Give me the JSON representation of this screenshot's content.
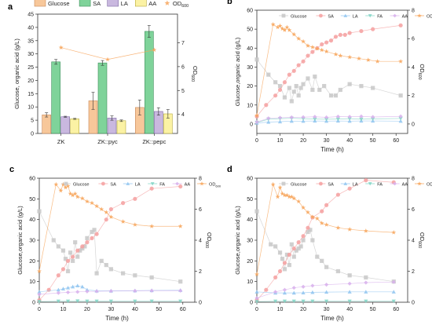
{
  "chart_data": [
    {
      "panel_label": "a",
      "type": "bar",
      "categories": [
        "ZK",
        "ZK::pyc",
        "ZK::pepc"
      ],
      "xlabel": "",
      "ylabel": "Glucose, organic acid (g/L)",
      "y2label": "OD600",
      "ylim": [
        0,
        45
      ],
      "yticks": [
        0,
        5,
        10,
        15,
        20,
        25,
        30,
        35,
        40,
        45
      ],
      "y2lim": [
        3.2,
        8.2
      ],
      "y2ticks": [
        4,
        5,
        6,
        7
      ],
      "legend_position": "top",
      "series": [
        {
          "name": "Glucose",
          "values": [
            7.0,
            12.3,
            9.8
          ],
          "err": [
            0.8,
            3.2,
            2.8
          ],
          "color": "#f7c79a",
          "edge": "#c8895a"
        },
        {
          "name": "SA",
          "values": [
            27.0,
            26.6,
            38.5
          ],
          "err": [
            0.9,
            0.9,
            2.2
          ],
          "color": "#7fd39a",
          "edge": "#3e8f5a"
        },
        {
          "name": "LA",
          "values": [
            6.3,
            5.8,
            8.3
          ],
          "err": [
            0.2,
            0.8,
            1.4
          ],
          "color": "#c9b8df",
          "edge": "#7e6aa3"
        },
        {
          "name": "AA",
          "values": [
            5.5,
            4.8,
            7.4
          ],
          "err": [
            0.2,
            0.3,
            1.6
          ],
          "color": "#fbf2a4",
          "edge": "#b7ab3b"
        },
        {
          "name": "OD600",
          "type": "line",
          "axis": "right",
          "values": [
            6.8,
            6.3,
            6.7
          ],
          "color": "#f7a45a"
        }
      ]
    },
    {
      "panel_label": "b",
      "type": "scatter",
      "xlabel": "Time (h)",
      "ylabel": "Glucose,organic acid (g/L)",
      "y2label": "OD600",
      "xlim": [
        0,
        65
      ],
      "xticks": [
        0,
        10,
        20,
        30,
        40,
        50,
        60
      ],
      "ylim": [
        -5,
        60
      ],
      "yticks": [
        0,
        10,
        20,
        30,
        40,
        50,
        60
      ],
      "y2lim": [
        -0.667,
        8
      ],
      "y2ticks": [
        0,
        2,
        4,
        6,
        8
      ],
      "series": [
        {
          "name": "Glucose",
          "marker": "square",
          "color": "#c8c8c8",
          "axis": "left",
          "x": [
            0,
            5,
            8,
            10,
            12,
            14,
            15,
            16,
            17,
            18,
            19,
            20,
            22,
            24,
            25,
            27,
            29,
            32,
            34,
            36,
            40,
            45,
            50,
            62
          ],
          "y": [
            34,
            26,
            22,
            20,
            14,
            19,
            12,
            17,
            20,
            15,
            19,
            21,
            24,
            18,
            25,
            18,
            20,
            15,
            15,
            18,
            21,
            20,
            19,
            15
          ]
        },
        {
          "name": "SA",
          "marker": "circle",
          "color": "#f4a0a0",
          "axis": "left",
          "x": [
            0,
            4,
            8,
            10,
            12,
            14,
            16,
            18,
            20,
            22,
            24,
            26,
            28,
            30,
            32,
            34,
            36,
            38,
            40,
            45,
            50,
            62
          ],
          "y": [
            4,
            10,
            15,
            18,
            22,
            26,
            28,
            31,
            33,
            36,
            38,
            40,
            42,
            43,
            44,
            46,
            47,
            47,
            48,
            49,
            50,
            52
          ]
        },
        {
          "name": "LA",
          "marker": "triangle",
          "color": "#8fc4f0",
          "axis": "left",
          "x": [
            0,
            5,
            10,
            15,
            20,
            25,
            30,
            35,
            40,
            45,
            50,
            62
          ],
          "y": [
            0.5,
            1.0,
            1.2,
            1.5,
            1.5,
            1.6,
            1.5,
            1.6,
            1.5,
            1.6,
            1.6,
            1.5
          ]
        },
        {
          "name": "FA",
          "marker": "triangle-down",
          "color": "#7fd3c4",
          "axis": "left",
          "x": [
            0,
            5,
            10,
            15,
            20,
            25,
            30,
            35,
            40,
            45,
            50,
            62
          ],
          "y": [
            0.8,
            2.5,
            2.8,
            3.0,
            2.8,
            2.6,
            2.5,
            2.6,
            2.8,
            2.5,
            2.7,
            2.9
          ]
        },
        {
          "name": "AA",
          "marker": "diamond",
          "color": "#d8b0ec",
          "axis": "left",
          "x": [
            0,
            5,
            10,
            15,
            20,
            25,
            30,
            35,
            40,
            45,
            50,
            62
          ],
          "y": [
            1,
            3.0,
            3.3,
            3.5,
            3.6,
            3.8,
            3.5,
            3.9,
            3.8,
            4.0,
            3.7,
            4.0
          ]
        },
        {
          "name": "OD600",
          "marker": "star",
          "color": "#f7a45a",
          "axis": "right",
          "x": [
            0,
            7,
            9,
            10,
            11,
            12,
            13,
            14,
            16,
            18,
            20,
            22,
            24,
            26,
            28,
            30,
            34,
            36,
            40,
            44,
            48,
            52,
            62
          ],
          "y": [
            0.6,
            7.0,
            6.8,
            6.9,
            6.7,
            6.6,
            6.8,
            6.6,
            6.3,
            6.0,
            5.8,
            5.5,
            5.4,
            5.3,
            5.2,
            5.1,
            4.9,
            4.8,
            4.7,
            4.6,
            4.5,
            4.4,
            4.4
          ]
        }
      ]
    },
    {
      "panel_label": "c",
      "type": "scatter",
      "xlabel": "Time (h)",
      "ylabel": "Glucose,organic acid (g/L)",
      "y2label": "OD600",
      "xlim": [
        0,
        65
      ],
      "xticks": [
        0,
        10,
        20,
        30,
        40,
        50,
        60
      ],
      "ylim": [
        0,
        60
      ],
      "yticks": [
        0,
        10,
        20,
        30,
        40,
        50,
        60
      ],
      "y2lim": [
        0,
        8
      ],
      "y2ticks": [
        0,
        2,
        4,
        6,
        8
      ],
      "series": [
        {
          "name": "Glucose",
          "marker": "square",
          "color": "#c8c8c8",
          "axis": "left",
          "x": [
            0,
            6,
            8,
            10,
            11,
            12,
            13,
            14,
            15,
            16,
            17,
            18,
            19,
            20,
            22,
            23,
            24,
            26,
            28,
            30,
            35,
            40,
            47,
            59
          ],
          "y": [
            44,
            30,
            27,
            25,
            21,
            15,
            24,
            20,
            29,
            22,
            25,
            26,
            27,
            31,
            34,
            35,
            14,
            20,
            18,
            16,
            14,
            13,
            12,
            10
          ]
        },
        {
          "name": "SA",
          "marker": "circle",
          "color": "#f4a0a0",
          "axis": "left",
          "x": [
            0,
            4,
            8,
            10,
            12,
            14,
            16,
            18,
            20,
            22,
            24,
            28,
            30,
            35,
            40,
            47,
            59
          ],
          "y": [
            1,
            6,
            13,
            16,
            20,
            22,
            25,
            27,
            29,
            31,
            33,
            40,
            45,
            48,
            50,
            55,
            56
          ]
        },
        {
          "name": "LA",
          "marker": "triangle",
          "color": "#8fc4f0",
          "axis": "left",
          "x": [
            0,
            8,
            10,
            12,
            14,
            16,
            18,
            20,
            24,
            30,
            40,
            47,
            59
          ],
          "y": [
            5,
            6,
            6.5,
            7,
            7.5,
            8,
            7.5,
            6,
            5.5,
            5.5,
            5.6,
            5.7,
            5.8
          ]
        },
        {
          "name": "FA",
          "marker": "triangle-down",
          "color": "#7fd3c4",
          "axis": "left",
          "x": [
            0,
            8,
            12,
            16,
            20,
            24,
            30,
            40,
            47,
            59
          ],
          "y": [
            0.3,
            0.5,
            0.5,
            0.6,
            0.5,
            0.5,
            0.5,
            0.5,
            0.5,
            0.5
          ]
        },
        {
          "name": "AA",
          "marker": "diamond",
          "color": "#d8b0ec",
          "axis": "left",
          "x": [
            0,
            8,
            12,
            16,
            20,
            24,
            30,
            40,
            47,
            59
          ],
          "y": [
            3.8,
            4.5,
            4.8,
            5.0,
            5.2,
            5.3,
            5.4,
            5.5,
            5.6,
            5.6
          ]
        },
        {
          "name": "OD600",
          "marker": "star",
          "color": "#f7a45a",
          "axis": "right",
          "x": [
            0,
            7,
            9,
            10,
            11,
            12,
            13,
            14,
            15,
            16,
            18,
            20,
            22,
            24,
            26,
            28,
            30,
            35,
            40,
            47,
            59
          ],
          "y": [
            2.0,
            7.6,
            7.2,
            7.6,
            7.4,
            7.5,
            7.0,
            6.9,
            7.0,
            6.8,
            6.7,
            6.5,
            6.4,
            6.2,
            6.0,
            5.8,
            5.5,
            5.2,
            5.0,
            4.9,
            4.9
          ]
        }
      ]
    },
    {
      "panel_label": "d",
      "type": "scatter",
      "xlabel": "Time (h)",
      "ylabel": "Glucose,organic acid (g/L)",
      "y2label": "OD600",
      "xlim": [
        0,
        65
      ],
      "xticks": [
        0,
        10,
        20,
        30,
        40,
        50,
        60
      ],
      "ylim": [
        0,
        60
      ],
      "yticks": [
        0,
        10,
        20,
        30,
        40,
        50,
        60
      ],
      "y2lim": [
        0,
        8
      ],
      "y2ticks": [
        0,
        2,
        4,
        6,
        8
      ],
      "series": [
        {
          "name": "Glucose",
          "marker": "square",
          "color": "#c8c8c8",
          "axis": "left",
          "x": [
            0,
            6,
            8,
            10,
            11,
            12,
            13,
            14,
            15,
            16,
            17,
            18,
            19,
            20,
            22,
            23,
            24,
            26,
            28,
            30,
            35,
            40,
            47,
            59
          ],
          "y": [
            44,
            28,
            27,
            24,
            21,
            16,
            23,
            18,
            28,
            22,
            25,
            26,
            27,
            30,
            34,
            35,
            30,
            22,
            20,
            17,
            15,
            13,
            12,
            10
          ]
        },
        {
          "name": "SA",
          "marker": "circle",
          "color": "#f4a0a0",
          "axis": "left",
          "x": [
            0,
            4,
            8,
            10,
            12,
            14,
            16,
            18,
            20,
            22,
            24,
            28,
            30,
            35,
            40,
            47,
            59
          ],
          "y": [
            1,
            6,
            12,
            15,
            19,
            23,
            26,
            29,
            32,
            36,
            41,
            44,
            47,
            52,
            55,
            59,
            58
          ]
        },
        {
          "name": "LA",
          "marker": "triangle",
          "color": "#8fc4f0",
          "axis": "left",
          "x": [
            0,
            8,
            12,
            16,
            20,
            24,
            30,
            40,
            47,
            59
          ],
          "y": [
            5,
            4.5,
            4.5,
            4.5,
            4.6,
            4.8,
            4.9,
            5.0,
            5.0,
            5.0
          ]
        },
        {
          "name": "FA",
          "marker": "triangle-down",
          "color": "#7fd3c4",
          "axis": "left",
          "x": [
            0,
            8,
            12,
            16,
            20,
            24,
            30,
            40,
            47,
            59
          ],
          "y": [
            0.3,
            0.5,
            0.5,
            0.5,
            0.5,
            0.5,
            0.5,
            0.5,
            0.5,
            0.5
          ]
        },
        {
          "name": "AA",
          "marker": "diamond",
          "color": "#d8b0ec",
          "axis": "left",
          "x": [
            0,
            8,
            12,
            16,
            20,
            24,
            30,
            40,
            47,
            59
          ],
          "y": [
            2,
            5,
            6,
            7,
            7.5,
            8,
            8.5,
            9,
            9.5,
            9.8
          ]
        },
        {
          "name": "OD600",
          "marker": "star",
          "color": "#f7a45a",
          "axis": "right",
          "x": [
            0,
            7,
            9,
            10,
            11,
            12,
            13,
            14,
            15,
            16,
            18,
            20,
            22,
            24,
            26,
            28,
            30,
            35,
            40,
            47,
            59
          ],
          "y": [
            1.8,
            7.6,
            6.8,
            7.4,
            7.0,
            6.9,
            6.9,
            6.8,
            6.8,
            6.7,
            6.5,
            6.1,
            5.8,
            5.5,
            5.4,
            5.1,
            5.0,
            4.8,
            4.7,
            4.6,
            4.5
          ]
        }
      ]
    }
  ]
}
